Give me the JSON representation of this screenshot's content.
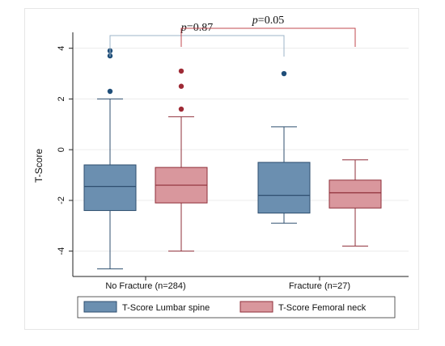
{
  "chart_data": {
    "type": "boxplot",
    "ylabel": "T-Score",
    "ylim": [
      -5,
      4.5
    ],
    "yticks": [
      "4",
      "2",
      "0",
      "-2",
      "-4"
    ],
    "yticks_values": [
      4,
      2,
      0,
      -2,
      -4
    ],
    "grid": true,
    "categories": [
      "No Fracture (n=284)",
      "Fracture (n=27)"
    ],
    "series": [
      {
        "name": "T-Score Lumbar spine",
        "color": "#6b8fb0",
        "edge": "#2f4f6f",
        "outlier_color": "#1f4e79",
        "boxes": [
          {
            "q1": -2.4,
            "median": -1.45,
            "q3": -0.6,
            "whisker_low": -4.7,
            "whisker_high": 2.0,
            "outliers": [
              2.3,
              3.7,
              3.9
            ]
          },
          {
            "q1": -2.5,
            "median": -1.8,
            "q3": -0.5,
            "whisker_low": -2.9,
            "whisker_high": 0.9,
            "outliers": [
              3.0
            ]
          }
        ]
      },
      {
        "name": "T-Score Femoral neck",
        "color": "#d9979d",
        "edge": "#8f2f3a",
        "outlier_color": "#9e2a35",
        "boxes": [
          {
            "q1": -2.1,
            "median": -1.4,
            "q3": -0.7,
            "whisker_low": -4.0,
            "whisker_high": 1.3,
            "outliers": [
              1.6,
              2.5,
              3.1
            ]
          },
          {
            "q1": -2.3,
            "median": -1.7,
            "q3": -1.2,
            "whisker_low": -3.8,
            "whisker_high": -0.4,
            "outliers": []
          }
        ]
      }
    ],
    "annotations": [
      {
        "p": "p",
        "text": "=0.87",
        "from": [
          0,
          0
        ],
        "to": [
          1,
          0
        ],
        "color": "#9cb4c8"
      },
      {
        "p": "p",
        "text": "=0.05",
        "from": [
          0,
          1
        ],
        "to": [
          1,
          1
        ],
        "color": "#c0484f"
      }
    ],
    "legend": {
      "placement": "bottom"
    }
  }
}
